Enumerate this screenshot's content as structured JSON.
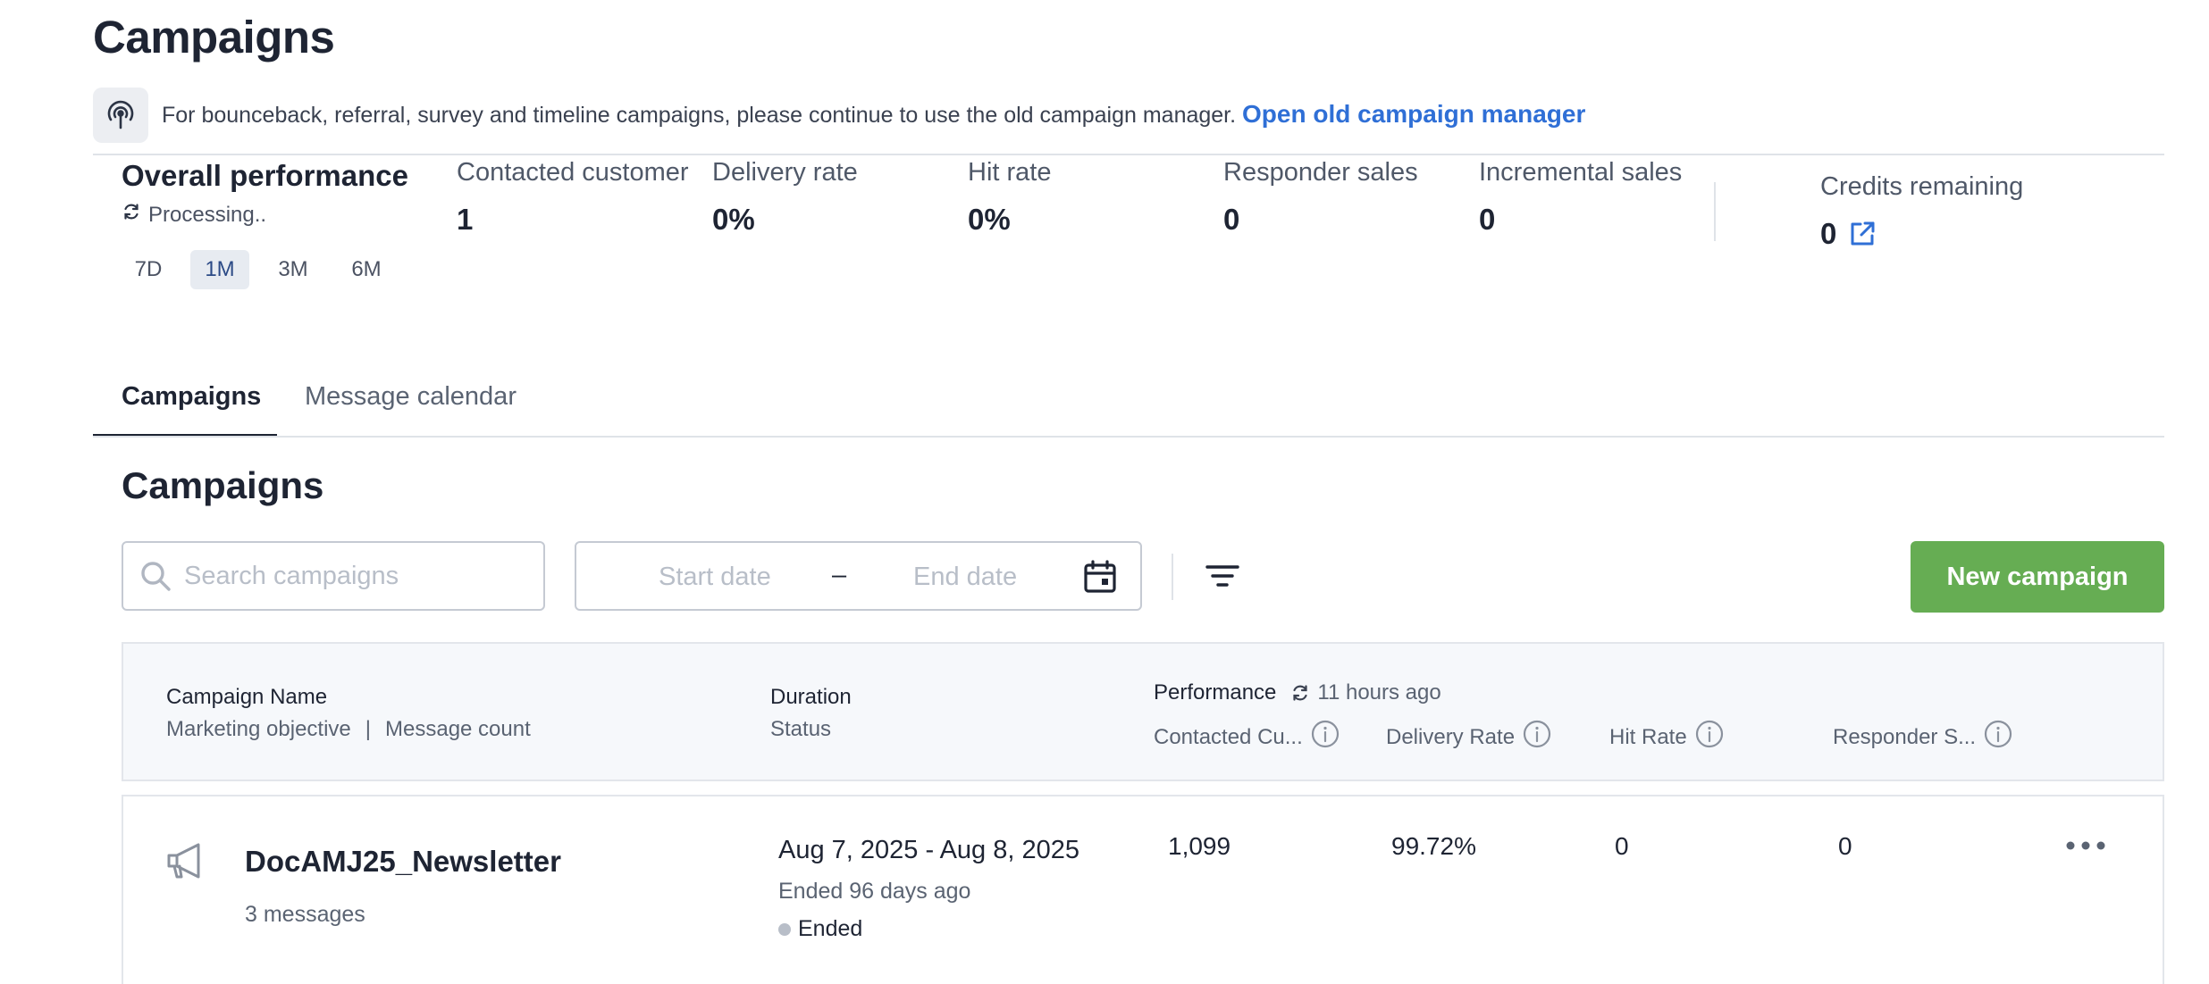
{
  "page": {
    "title": "Campaigns"
  },
  "notice": {
    "text": "For bounceback, referral, survey and timeline campaigns, please continue to use the old campaign manager.",
    "link_label": "Open old campaign manager"
  },
  "performance": {
    "title": "Overall performance",
    "status": "Processing..",
    "periods": [
      "7D",
      "1M",
      "3M",
      "6M"
    ],
    "selected_period": "1M",
    "metrics": [
      {
        "label": "Contacted customer",
        "value": "1"
      },
      {
        "label": "Delivery rate",
        "value": "0%"
      },
      {
        "label": "Hit rate",
        "value": "0%"
      },
      {
        "label": "Responder sales",
        "value": "0"
      },
      {
        "label": "Incremental sales",
        "value": "0"
      }
    ],
    "credits": {
      "label": "Credits remaining",
      "value": "0"
    }
  },
  "tabs": [
    {
      "label": "Campaigns",
      "active": true
    },
    {
      "label": "Message calendar",
      "active": false
    }
  ],
  "section": {
    "title": "Campaigns"
  },
  "toolbar": {
    "search_placeholder": "Search campaigns",
    "start_placeholder": "Start date",
    "date_separator": "–",
    "end_placeholder": "End date",
    "new_button": "New campaign"
  },
  "table": {
    "col_name": "Campaign Name",
    "col_name_sub1": "Marketing objective",
    "col_name_sep": "|",
    "col_name_sub2": "Message count",
    "col_duration": "Duration",
    "col_status": "Status",
    "col_performance": "Performance",
    "performance_updated": "11 hours ago",
    "perf_cols": [
      "Contacted Cu...",
      "Delivery Rate",
      "Hit Rate",
      "Responder S..."
    ],
    "rows": [
      {
        "name": "DocAMJ25_Newsletter",
        "messages": "3 messages",
        "duration": "Aug 7, 2025 - Aug 8, 2025",
        "ended_ago": "Ended 96 days ago",
        "status": "Ended",
        "contacted": "1,099",
        "delivery_rate": "99.72%",
        "hit_rate": "0",
        "responder_sales": "0"
      }
    ]
  },
  "colors": {
    "link": "#2f6fd6",
    "primary_button": "#66ad53",
    "heading": "#1e2433",
    "status_ended": "#b8bec8"
  },
  "icons": [
    "radio-signal-icon",
    "refresh-icon",
    "external-link-icon",
    "search-icon",
    "calendar-icon",
    "filter-icon",
    "info-icon",
    "megaphone-icon",
    "more-icon"
  ]
}
